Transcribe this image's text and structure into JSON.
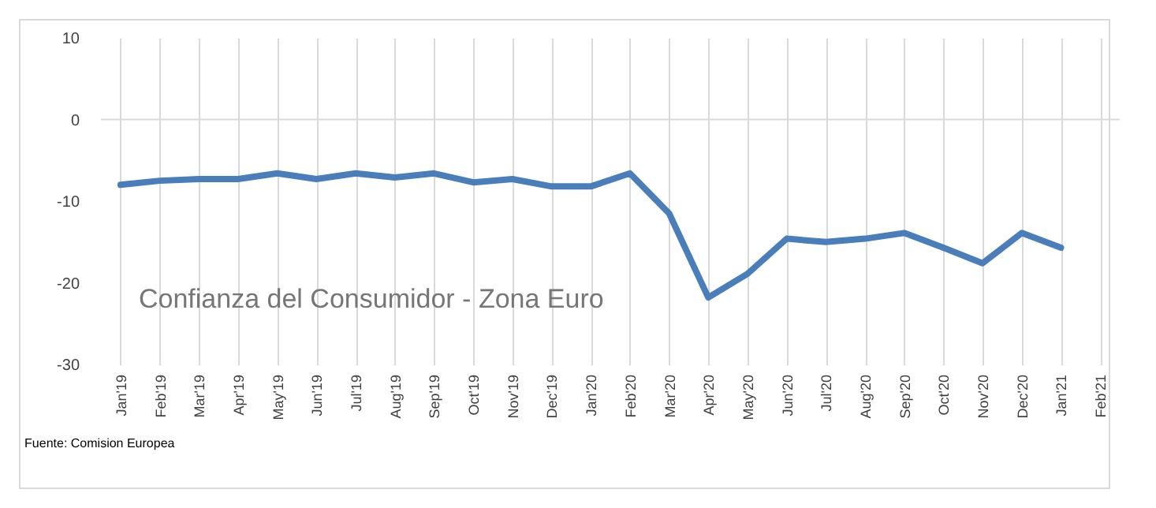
{
  "chart_data": {
    "type": "line",
    "title": "Confianza del Consumidor - Zona Euro",
    "categories": [
      "Jan'19",
      "Feb'19",
      "Mar'19",
      "Apr'19",
      "May'19",
      "Jun'19",
      "Jul'19",
      "Aug'19",
      "Sep'19",
      "Oct'19",
      "Nov'19",
      "Dec'19",
      "Jan'20",
      "Feb'20",
      "Mar'20",
      "Apr'20",
      "May'20",
      "Jun'20",
      "Jul'20",
      "Aug'20",
      "Sep'20",
      "Oct'20",
      "Nov'20",
      "Dec'20",
      "Jan'21",
      "Feb'21"
    ],
    "series": [
      {
        "color": "#4a7ebb",
        "values": [
          -8.0,
          -7.5,
          -7.3,
          -7.3,
          -6.6,
          -7.3,
          -6.6,
          -7.1,
          -6.6,
          -7.7,
          -7.3,
          -8.2,
          -8.2,
          -6.6,
          -11.5,
          -21.8,
          -18.9,
          -14.6,
          -15.0,
          -14.6,
          -13.9,
          -15.7,
          -17.6,
          -13.9,
          -15.7,
          null
        ]
      }
    ],
    "ylim": [
      -30,
      10
    ],
    "yticks": [
      -30,
      -20,
      -10,
      0,
      10
    ],
    "grid": "x",
    "ref_lines": [
      {
        "axis": "y",
        "value": 0,
        "color": "#d9d9d9"
      }
    ],
    "annotations": [
      "Fuente: Comision Europea"
    ]
  }
}
